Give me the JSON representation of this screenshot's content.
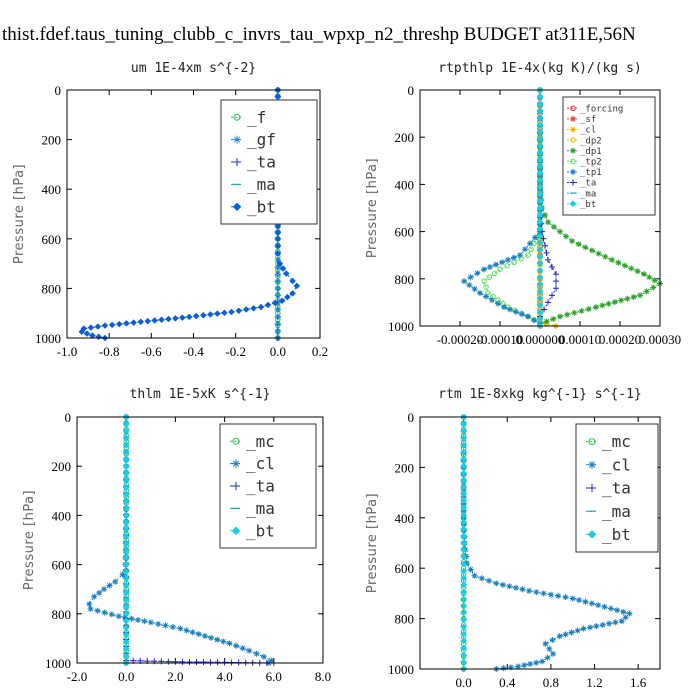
{
  "figure_title": "thist.fdef.taus_tuning_clubb_c_invrs_tau_wpxp_n2_threshp  BUDGET at311E,56N",
  "chart_data": [
    {
      "type": "line",
      "title": "um  1E-4xm s^{-2}",
      "ylabel": "Pressure [hPa]",
      "xlim": [
        -1.0,
        0.2
      ],
      "ylim": [
        1000,
        0
      ],
      "xticks": [
        -1.0,
        -0.8,
        -0.6,
        -0.4,
        -0.2,
        0.0,
        0.2
      ],
      "xticklabels": [
        "-1.0",
        "-0.8",
        "-0.6",
        "-0.4",
        "-0.2",
        "0.0",
        "0.2"
      ],
      "yticks": [
        0,
        200,
        400,
        600,
        800,
        1000
      ],
      "yticklabels": [
        "0",
        "200",
        "400",
        "600",
        "800",
        "1000"
      ],
      "legend": "upper-right",
      "legend_font_size": 16,
      "series": [
        {
          "name": "_f",
          "color": "#22c24a",
          "marker": "circle",
          "values": [
            [
              0,
              0
            ],
            [
              0,
              100
            ],
            [
              0,
              200
            ],
            [
              0,
              300
            ],
            [
              0,
              400
            ],
            [
              0,
              500
            ],
            [
              0,
              600
            ],
            [
              0,
              700
            ],
            [
              0,
              800
            ],
            [
              0,
              900
            ],
            [
              0,
              1000
            ]
          ]
        },
        {
          "name": "_gf",
          "color": "#2a8fd6",
          "marker": "star",
          "values": [
            [
              0,
              0
            ],
            [
              0,
              1000
            ]
          ]
        },
        {
          "name": "_ta",
          "color": "#1a2acc",
          "marker": "plus",
          "values": [
            [
              0,
              0
            ],
            [
              0,
              1000
            ]
          ]
        },
        {
          "name": "_ma",
          "color": "#1aa6b8",
          "marker": "dash",
          "values": [
            [
              0,
              0
            ],
            [
              0,
              1000
            ]
          ]
        },
        {
          "name": "_bt",
          "color": "#0a5fd8",
          "marker": "diamond",
          "values": [
            [
              0.0,
              0
            ],
            [
              0.0,
              100
            ],
            [
              0.0,
              200
            ],
            [
              0.0,
              300
            ],
            [
              0.0,
              400
            ],
            [
              0.0,
              500
            ],
            [
              0.0,
              600
            ],
            [
              0.0,
              660
            ],
            [
              0.01,
              700
            ],
            [
              0.04,
              740
            ],
            [
              0.07,
              770
            ],
            [
              0.09,
              790
            ],
            [
              0.07,
              820
            ],
            [
              0.02,
              850
            ],
            [
              -0.08,
              875
            ],
            [
              -0.22,
              895
            ],
            [
              -0.42,
              915
            ],
            [
              -0.65,
              935
            ],
            [
              -0.82,
              950
            ],
            [
              -0.92,
              962
            ],
            [
              -0.93,
              975
            ],
            [
              -0.88,
              990
            ],
            [
              -0.82,
              1000
            ]
          ]
        }
      ]
    },
    {
      "type": "line",
      "title": "rtpthlp  1E-4x(kg K)/(kg s)",
      "ylabel": "Pressure [hPa]",
      "xlim": [
        -0.0003,
        0.0003
      ],
      "ylim": [
        1000,
        0
      ],
      "xticks": [
        -0.0002,
        -0.0001,
        0.0,
        0.0001,
        0.0002,
        0.0003
      ],
      "xticklabels": [
        "-0.00020",
        "-0.00010",
        "0.000000",
        "0.00010",
        "0.00020",
        "0.00030"
      ],
      "yticks": [
        0,
        200,
        400,
        600,
        800,
        1000
      ],
      "yticklabels": [
        "0",
        "200",
        "400",
        "600",
        "800",
        "1000"
      ],
      "legend": "upper-right",
      "legend_font_size": 9,
      "series": [
        {
          "name": "_forcing",
          "color": "#e02a2a",
          "marker": "circle",
          "values": [
            [
              0,
              0
            ],
            [
              0,
              100
            ],
            [
              0,
              200
            ],
            [
              0,
              300
            ],
            [
              0,
              400
            ],
            [
              0,
              500
            ],
            [
              0,
              600
            ],
            [
              0,
              700
            ],
            [
              0,
              800
            ],
            [
              0,
              900
            ],
            [
              0,
              1000
            ]
          ]
        },
        {
          "name": "_sf",
          "color": "#e04040",
          "marker": "star",
          "values": [
            [
              0,
              0
            ],
            [
              0,
              1000
            ]
          ]
        },
        {
          "name": "_cl",
          "color": "#f0b400",
          "marker": "star",
          "values": [
            [
              0,
              0
            ],
            [
              0,
              980
            ],
            [
              1.5e-05,
              990
            ],
            [
              4e-05,
              1000
            ]
          ]
        },
        {
          "name": "_dp2",
          "color": "#f0c000",
          "marker": "circle",
          "values": [
            [
              0,
              0
            ],
            [
              0,
              1000
            ]
          ]
        },
        {
          "name": "_dp1",
          "color": "#2aa02a",
          "marker": "star",
          "values": [
            [
              0.0,
              0
            ],
            [
              0.0,
              400
            ],
            [
              5e-06,
              500
            ],
            [
              2e-05,
              560
            ],
            [
              8e-05,
              640
            ],
            [
              0.00018,
              720
            ],
            [
              0.00026,
              780
            ],
            [
              0.0003,
              820
            ],
            [
              0.00025,
              870
            ],
            [
              0.00014,
              920
            ],
            [
              5e-05,
              960
            ],
            [
              0.0,
              990
            ]
          ]
        },
        {
          "name": "_tp2",
          "color": "#55dd55",
          "marker": "circle",
          "values": [
            [
              0.0,
              0
            ],
            [
              0.0,
              600
            ],
            [
              -3e-05,
              700
            ],
            [
              -0.0001,
              760
            ],
            [
              -0.00014,
              810
            ],
            [
              -0.00013,
              860
            ],
            [
              -8e-05,
              920
            ],
            [
              -3e-05,
              960
            ],
            [
              0.0,
              990
            ]
          ]
        },
        {
          "name": "_tp1",
          "color": "#1a7fc0",
          "marker": "star",
          "values": [
            [
              0.0,
              0
            ],
            [
              0.0,
              600
            ],
            [
              -5e-05,
              700
            ],
            [
              -0.00014,
              760
            ],
            [
              -0.00019,
              810
            ],
            [
              -0.00015,
              860
            ],
            [
              -9e-05,
              920
            ],
            [
              -3e-05,
              960
            ],
            [
              0.0,
              990
            ]
          ]
        },
        {
          "name": "_ta",
          "color": "#2222cc",
          "marker": "plus",
          "values": [
            [
              0.0,
              0
            ],
            [
              0.0,
              500
            ],
            [
              5e-06,
              600
            ],
            [
              2e-05,
              720
            ],
            [
              4e-05,
              780
            ],
            [
              4e-05,
              840
            ],
            [
              2e-05,
              900
            ],
            [
              0.0,
              960
            ]
          ]
        },
        {
          "name": "_ma",
          "color": "#1aa6b8",
          "marker": "dash",
          "values": [
            [
              0,
              0
            ],
            [
              0,
              1000
            ]
          ]
        },
        {
          "name": "_bt",
          "color": "#12d0e8",
          "marker": "diamond",
          "values": [
            [
              0,
              0
            ],
            [
              0,
              1000
            ]
          ]
        }
      ]
    },
    {
      "type": "line",
      "title": "thlm  1E-5xK s^{-1}",
      "ylabel": "Pressure [hPa]",
      "xlim": [
        -2.0,
        8.0
      ],
      "ylim": [
        1000,
        0
      ],
      "xticks": [
        -2.0,
        0.0,
        2.0,
        4.0,
        6.0,
        8.0
      ],
      "xticklabels": [
        "-2.0",
        "0.0",
        "2.0",
        "4.0",
        "6.0",
        "8.0"
      ],
      "yticks": [
        0,
        200,
        400,
        600,
        800,
        1000
      ],
      "yticklabels": [
        "0",
        "200",
        "400",
        "600",
        "800",
        "1000"
      ],
      "legend": "upper-right",
      "legend_font_size": 16,
      "series": [
        {
          "name": "_mc",
          "color": "#22c24a",
          "marker": "circle",
          "values": [
            [
              0,
              0
            ],
            [
              0,
              100
            ],
            [
              0,
              200
            ],
            [
              0,
              300
            ],
            [
              0,
              400
            ],
            [
              0,
              500
            ],
            [
              0,
              600
            ],
            [
              0,
              700
            ],
            [
              0,
              800
            ],
            [
              0,
              900
            ],
            [
              0,
              1000
            ]
          ]
        },
        {
          "name": "_cl",
          "color": "#1a7fc0",
          "marker": "star",
          "values": [
            [
              0.0,
              0
            ],
            [
              0.0,
              400
            ],
            [
              -0.03,
              600
            ],
            [
              -0.15,
              640
            ],
            [
              -0.45,
              670
            ],
            [
              -0.9,
              700
            ],
            [
              -1.3,
              730
            ],
            [
              -1.5,
              760
            ],
            [
              -1.45,
              780
            ],
            [
              -0.3,
              810
            ],
            [
              1.0,
              835
            ],
            [
              2.2,
              860
            ],
            [
              3.2,
              890
            ],
            [
              4.2,
              920
            ],
            [
              5.0,
              950
            ],
            [
              5.6,
              975
            ],
            [
              5.9,
              990
            ],
            [
              5.8,
              1000
            ]
          ]
        },
        {
          "name": "_ta",
          "color": "#2222cc",
          "marker": "plus",
          "values": [
            [
              0.0,
              0
            ],
            [
              0.0,
              990
            ],
            [
              2.0,
              995
            ],
            [
              6.0,
              1000
            ]
          ]
        },
        {
          "name": "_ma",
          "color": "#1aa6b8",
          "marker": "dash",
          "values": [
            [
              0,
              0
            ],
            [
              0,
              1000
            ]
          ]
        },
        {
          "name": "_bt",
          "color": "#12d0e8",
          "marker": "diamond",
          "values": [
            [
              0,
              0
            ],
            [
              0,
              1000
            ]
          ]
        }
      ]
    },
    {
      "type": "line",
      "title": "rtm  1E-8xkg kg^{-1} s^{-1}",
      "ylabel": "Pressure [hPa]",
      "xlim": [
        -0.4,
        1.8
      ],
      "ylim": [
        1000,
        0
      ],
      "xticks": [
        0.0,
        0.4,
        0.8,
        1.2,
        1.6
      ],
      "xticklabels": [
        "0.0",
        "0.4",
        "0.8",
        "1.2",
        "1.6"
      ],
      "yticks": [
        0,
        200,
        400,
        600,
        800,
        1000
      ],
      "yticklabels": [
        "0",
        "200",
        "400",
        "600",
        "800",
        "1000"
      ],
      "legend": "upper-right",
      "legend_font_size": 16,
      "series": [
        {
          "name": "_mc",
          "color": "#22c24a",
          "marker": "circle",
          "values": [
            [
              0,
              0
            ],
            [
              0,
              100
            ],
            [
              0,
              200
            ],
            [
              0,
              300
            ],
            [
              0,
              400
            ],
            [
              0,
              500
            ],
            [
              0,
              600
            ],
            [
              0,
              700
            ],
            [
              0,
              800
            ],
            [
              0,
              900
            ],
            [
              0,
              1000
            ]
          ]
        },
        {
          "name": "_cl",
          "color": "#1a7fc0",
          "marker": "star",
          "values": [
            [
              0.0,
              0
            ],
            [
              0.0,
              400
            ],
            [
              0.01,
              500
            ],
            [
              0.03,
              580
            ],
            [
              0.1,
              630
            ],
            [
              0.3,
              660
            ],
            [
              0.6,
              690
            ],
            [
              1.0,
              720
            ],
            [
              1.35,
              760
            ],
            [
              1.52,
              780
            ],
            [
              1.45,
              810
            ],
            [
              1.1,
              840
            ],
            [
              0.88,
              870
            ],
            [
              0.75,
              900
            ],
            [
              0.82,
              940
            ],
            [
              0.72,
              970
            ],
            [
              0.5,
              990
            ],
            [
              0.3,
              1000
            ]
          ]
        },
        {
          "name": "_ta",
          "color": "#2222cc",
          "marker": "plus",
          "values": [
            [
              0,
              0
            ],
            [
              0,
              1000
            ]
          ]
        },
        {
          "name": "_ma",
          "color": "#1aa6b8",
          "marker": "dash",
          "values": [
            [
              0,
              0
            ],
            [
              0,
              1000
            ]
          ]
        },
        {
          "name": "_bt",
          "color": "#12d0e8",
          "marker": "diamond",
          "values": [
            [
              0,
              0
            ],
            [
              0,
              1000
            ]
          ]
        }
      ]
    }
  ]
}
